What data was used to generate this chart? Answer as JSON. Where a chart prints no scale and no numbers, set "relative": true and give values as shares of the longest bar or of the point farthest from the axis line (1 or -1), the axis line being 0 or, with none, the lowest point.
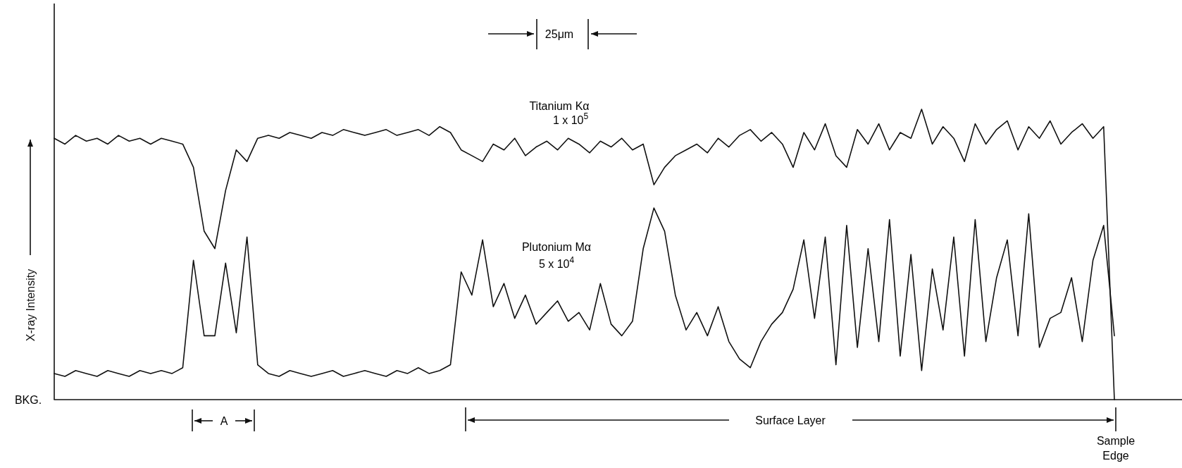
{
  "chart_data": {
    "type": "line",
    "relative": true,
    "ylabel": "X-ray Intensity",
    "marker": "none",
    "line_style": "solid",
    "grid": false,
    "legend": false,
    "categories": [
      null,
      null,
      null,
      null,
      null,
      null,
      null,
      null,
      null,
      null,
      null,
      null,
      null,
      null,
      null,
      null,
      null,
      null,
      null,
      null,
      null,
      null,
      null,
      null,
      null,
      null,
      null,
      null,
      null,
      null,
      null,
      null,
      null,
      null,
      null,
      null,
      null,
      null,
      null,
      null,
      null,
      null,
      null,
      null,
      null,
      null,
      null,
      null,
      null,
      null,
      null,
      null,
      null,
      null,
      null,
      null,
      null,
      null,
      null,
      null,
      null,
      null,
      null,
      null,
      null,
      null,
      null,
      null,
      null,
      null,
      null,
      null,
      null,
      null,
      null,
      null,
      null,
      null,
      null,
      null,
      null,
      null,
      null,
      null,
      null,
      null,
      null,
      null,
      null,
      null,
      null,
      null,
      null,
      null,
      null,
      null,
      null,
      null,
      null,
      null
    ],
    "series": [
      {
        "name": "Titanium Kα",
        "color": "#111111",
        "values": [
          0.9,
          0.88,
          0.91,
          0.89,
          0.9,
          0.88,
          0.91,
          0.89,
          0.9,
          0.88,
          0.9,
          0.89,
          0.88,
          0.8,
          0.58,
          0.52,
          0.72,
          0.86,
          0.82,
          0.9,
          0.91,
          0.9,
          0.92,
          0.91,
          0.9,
          0.92,
          0.91,
          0.93,
          0.92,
          0.91,
          0.92,
          0.93,
          0.91,
          0.92,
          0.93,
          0.91,
          0.94,
          0.92,
          0.86,
          0.84,
          0.82,
          0.88,
          0.86,
          0.9,
          0.84,
          0.87,
          0.89,
          0.86,
          0.9,
          0.88,
          0.85,
          0.89,
          0.87,
          0.9,
          0.86,
          0.88,
          0.74,
          0.8,
          0.84,
          0.86,
          0.88,
          0.85,
          0.9,
          0.87,
          0.91,
          0.93,
          0.89,
          0.92,
          0.88,
          0.8,
          0.92,
          0.86,
          0.95,
          0.84,
          0.8,
          0.93,
          0.88,
          0.95,
          0.86,
          0.92,
          0.9,
          1.0,
          0.88,
          0.94,
          0.9,
          0.82,
          0.95,
          0.88,
          0.93,
          0.96,
          0.86,
          0.94,
          0.9,
          0.96,
          0.88,
          0.92,
          0.95,
          0.9,
          0.94,
          0.0
        ]
      },
      {
        "name": "Plutonium Mα",
        "color": "#111111",
        "values": [
          0.09,
          0.08,
          0.1,
          0.09,
          0.08,
          0.1,
          0.09,
          0.08,
          0.1,
          0.09,
          0.1,
          0.09,
          0.11,
          0.48,
          0.22,
          0.22,
          0.47,
          0.23,
          0.56,
          0.12,
          0.09,
          0.08,
          0.1,
          0.09,
          0.08,
          0.09,
          0.1,
          0.08,
          0.09,
          0.1,
          0.09,
          0.08,
          0.1,
          0.09,
          0.11,
          0.09,
          0.1,
          0.12,
          0.44,
          0.36,
          0.55,
          0.32,
          0.4,
          0.28,
          0.36,
          0.26,
          0.3,
          0.34,
          0.27,
          0.3,
          0.24,
          0.4,
          0.26,
          0.22,
          0.27,
          0.52,
          0.66,
          0.58,
          0.36,
          0.24,
          0.3,
          0.22,
          0.32,
          0.2,
          0.14,
          0.11,
          0.2,
          0.26,
          0.3,
          0.38,
          0.55,
          0.28,
          0.56,
          0.12,
          0.6,
          0.18,
          0.52,
          0.2,
          0.62,
          0.15,
          0.5,
          0.1,
          0.45,
          0.24,
          0.56,
          0.15,
          0.62,
          0.2,
          0.42,
          0.55,
          0.22,
          0.64,
          0.18,
          0.28,
          0.3,
          0.42,
          0.2,
          0.48,
          0.6,
          0.22
        ]
      }
    ],
    "annotations": [
      "25μm",
      "A",
      "Surface Layer",
      "Sample Edge",
      "BKG.",
      "1 x 10$^{5}$",
      "5 x 10$^{4}$"
    ]
  }
}
